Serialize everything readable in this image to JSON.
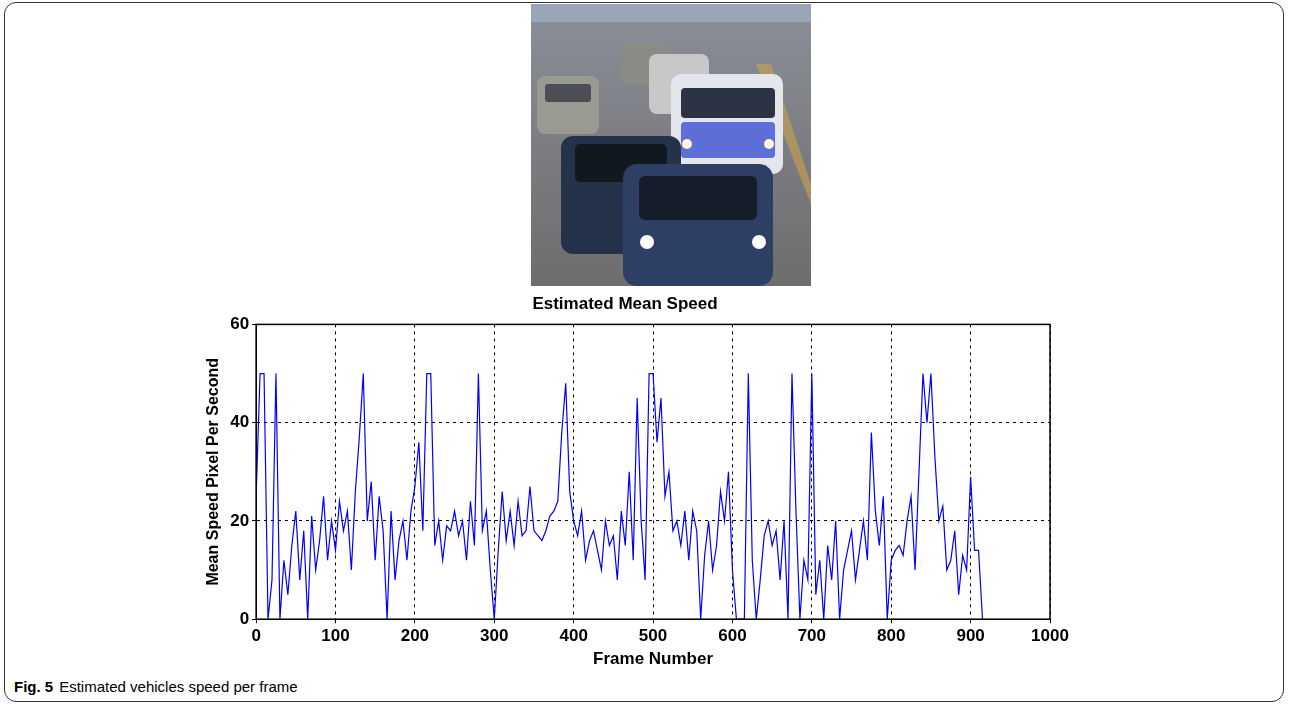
{
  "caption": {
    "label": "Fig. 5",
    "text": "Estimated vehicles speed per frame"
  },
  "chart_data": {
    "type": "line",
    "title": "Estimated Mean Speed",
    "x_label": "Frame Number",
    "y_label": "Mean Speed Pixel Per Second",
    "x": [
      0,
      5,
      10,
      15,
      20,
      25,
      30,
      35,
      40,
      45,
      50,
      55,
      60,
      65,
      70,
      75,
      80,
      85,
      90,
      95,
      100,
      105,
      110,
      115,
      120,
      125,
      130,
      135,
      140,
      145,
      150,
      155,
      160,
      165,
      170,
      175,
      180,
      185,
      190,
      195,
      200,
      205,
      210,
      215,
      220,
      225,
      230,
      235,
      240,
      245,
      250,
      255,
      260,
      265,
      270,
      275,
      280,
      285,
      290,
      295,
      300,
      305,
      310,
      315,
      320,
      325,
      330,
      335,
      340,
      345,
      350,
      355,
      360,
      365,
      370,
      375,
      380,
      385,
      390,
      395,
      400,
      405,
      410,
      415,
      420,
      425,
      430,
      435,
      440,
      445,
      450,
      455,
      460,
      465,
      470,
      475,
      480,
      485,
      490,
      495,
      500,
      505,
      510,
      515,
      520,
      525,
      530,
      535,
      540,
      545,
      550,
      555,
      560,
      565,
      570,
      575,
      580,
      585,
      590,
      595,
      600,
      605,
      610,
      615,
      620,
      625,
      630,
      635,
      640,
      645,
      650,
      655,
      660,
      665,
      670,
      675,
      680,
      685,
      690,
      695,
      700,
      705,
      710,
      715,
      720,
      725,
      730,
      735,
      740,
      745,
      750,
      755,
      760,
      765,
      770,
      775,
      780,
      785,
      790,
      795,
      800,
      805,
      810,
      815,
      820,
      825,
      830,
      835,
      840,
      845,
      850,
      855,
      860,
      865,
      870,
      875,
      880,
      885,
      890,
      895,
      900,
      905,
      910,
      915
    ],
    "values": [
      25,
      50,
      50,
      0,
      8,
      50,
      0,
      12,
      5,
      15,
      22,
      8,
      18,
      0,
      21,
      10,
      16,
      25,
      12,
      20,
      14,
      24,
      18,
      22,
      10,
      26,
      37,
      50,
      20,
      28,
      12,
      25,
      18,
      0,
      22,
      8,
      16,
      20,
      12,
      22,
      27,
      36,
      18,
      50,
      50,
      15,
      20,
      12,
      19,
      18,
      22,
      17,
      20,
      12,
      24,
      15,
      50,
      18,
      22,
      10,
      0,
      14,
      26,
      16,
      22,
      15,
      24,
      17,
      18,
      27,
      18,
      17,
      16,
      18,
      21,
      22,
      24,
      38,
      48,
      26,
      20,
      17,
      22,
      12,
      16,
      18,
      14,
      10,
      20,
      15,
      17,
      8,
      22,
      15,
      30,
      12,
      45,
      20,
      8,
      50,
      50,
      36,
      45,
      25,
      30,
      18,
      20,
      15,
      22,
      12,
      22,
      18,
      0,
      13,
      20,
      10,
      15,
      26,
      20,
      30,
      10,
      0,
      0,
      0,
      50,
      12,
      0,
      8,
      17,
      20,
      15,
      18,
      8,
      20,
      0,
      50,
      22,
      0,
      12,
      8,
      50,
      5,
      12,
      0,
      15,
      8,
      20,
      0,
      10,
      14,
      18,
      8,
      14,
      20,
      12,
      38,
      22,
      15,
      25,
      0,
      12,
      14,
      15,
      13,
      20,
      25,
      10,
      30,
      50,
      40,
      50,
      33,
      20,
      23,
      10,
      12,
      18,
      5,
      13,
      10,
      29,
      14,
      14,
      0
    ],
    "color": "#0000ff",
    "xlim": [
      0,
      1000
    ],
    "xticks": [
      0,
      100,
      200,
      300,
      400,
      500,
      600,
      700,
      800,
      900,
      1000
    ],
    "ylim": [
      0,
      60
    ],
    "yticks": [
      0,
      20,
      40,
      60
    ],
    "grid": true
  }
}
